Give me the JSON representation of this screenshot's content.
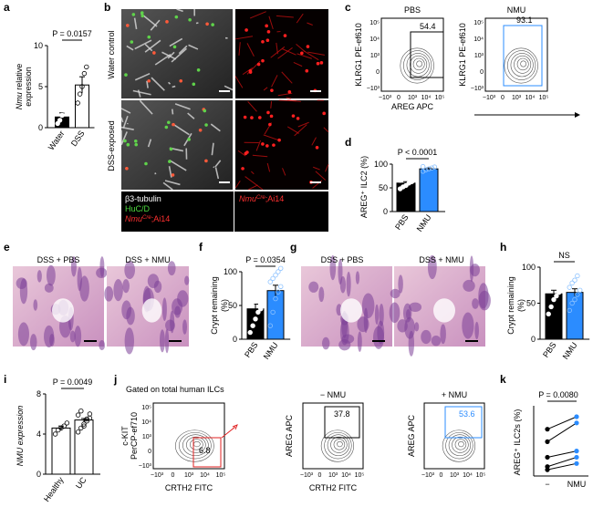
{
  "panels": {
    "a": {
      "label": "a",
      "ylabel_gene": "Nmu",
      "ylabel_rest": " relative",
      "ylabel2": "expression",
      "p_text": "P = 0.0157",
      "categories": [
        "Water",
        "DSS"
      ],
      "values": [
        1.3,
        5.2
      ],
      "errors": [
        0.5,
        1.0
      ],
      "points": [
        [
          0.5,
          0.9,
          1.5,
          2.1
        ],
        [
          3.0,
          4.1,
          5.0,
          6.6,
          7.4
        ]
      ],
      "colors": [
        "#000000",
        "#ffffff"
      ],
      "ylim": [
        0,
        10
      ],
      "yticks": [
        0,
        5,
        10
      ]
    },
    "b": {
      "label": "b",
      "rows": [
        "Water control",
        "DSS-exposed"
      ],
      "legend": [
        "β3-tubulin",
        "HuC/D"
      ],
      "reporter": {
        "gene": "Nmu",
        "sup": "Cre",
        "rest": ";Ai14"
      }
    },
    "c": {
      "label": "c",
      "plots": [
        {
          "title": "PBS",
          "gate": 54.4
        },
        {
          "title": "NMU",
          "gate": 93.1
        }
      ],
      "ylabel": "KLRG1 PE-ef610",
      "xlabel": "AREG APC",
      "ticks": [
        "−10³",
        "0",
        "10³",
        "10⁴",
        "10⁵"
      ]
    },
    "d": {
      "label": "d",
      "ylabel": "AREG⁺ ILC2 (%)",
      "p_text": "P < 0.0001",
      "categories": [
        "PBS",
        "NMU"
      ],
      "values": [
        60,
        90
      ],
      "errors": [
        3,
        2
      ],
      "points": [
        [
          48,
          52,
          55,
          60,
          63,
          66,
          70
        ],
        [
          85,
          88,
          90,
          92,
          94,
          95
        ]
      ],
      "colors": [
        "#000000",
        "#2b8cff"
      ],
      "ylim": [
        0,
        100
      ],
      "yticks": [
        0,
        50,
        100
      ]
    },
    "e": {
      "label": "e",
      "titles": [
        "DSS + PBS",
        "DSS + NMU"
      ]
    },
    "f": {
      "label": "f",
      "ylabel": "Crypt remaining",
      "ylabel2": "(%)",
      "p_text": "P = 0.0354",
      "categories": [
        "PBS",
        "NMU"
      ],
      "values": [
        45,
        72
      ],
      "errors": [
        7,
        8
      ],
      "points": [
        [
          10,
          20,
          30,
          40,
          45,
          50,
          55,
          60,
          65,
          72,
          80
        ],
        [
          20,
          40,
          60,
          70,
          78,
          85,
          90,
          95,
          100,
          105
        ]
      ],
      "colors": [
        "#000000",
        "#2b8cff"
      ],
      "ylim": [
        0,
        100
      ],
      "yticks": [
        0,
        50,
        100
      ]
    },
    "g": {
      "label": "g",
      "titles": [
        "DSS + PBS",
        "DSS + NMU"
      ]
    },
    "h": {
      "label": "h",
      "ylabel": "Crypt remaining",
      "ylabel2": "(%)",
      "p_text": "NS",
      "categories": [
        "PBS",
        "NMU"
      ],
      "values": [
        63,
        65
      ],
      "errors": [
        5,
        5
      ],
      "points": [
        [
          35,
          45,
          55,
          60,
          65,
          70,
          75,
          80,
          85
        ],
        [
          40,
          50,
          55,
          62,
          68,
          72,
          78,
          82,
          88
        ]
      ],
      "colors": [
        "#000000",
        "#2b8cff"
      ],
      "ylim": [
        0,
        100
      ],
      "yticks": [
        0,
        50,
        100
      ]
    },
    "i": {
      "label": "i",
      "ylabel": "NMU expression",
      "p_text": "P = 0.0049",
      "categories": [
        "Healthy",
        "UC"
      ],
      "values": [
        4.6,
        5.4
      ],
      "errors": [
        0.2,
        0.15
      ],
      "points": [
        [
          4.0,
          4.4,
          4.6,
          4.8,
          5.1
        ],
        [
          4.2,
          4.6,
          5.0,
          5.3,
          5.6,
          5.9,
          6.3,
          4.8,
          5.5,
          6.0
        ]
      ],
      "colors": [
        "#ffffff",
        "#ffffff"
      ],
      "ylim": [
        0,
        8
      ],
      "yticks": [
        0,
        4,
        8
      ]
    },
    "j": {
      "label": "j",
      "gating": "Gated on total human ILCs",
      "ylabel": "c-KIT",
      "ylabel2": "PerCP-ef710",
      "xlabel": "CRTH2 FITC",
      "gate": 6.8,
      "plots": [
        {
          "title": "− NMU",
          "gate": 37.8
        },
        {
          "title": "+ NMU",
          "gate": 53.6
        }
      ],
      "ylabel_b": "AREG APC",
      "ticks": [
        "−10³",
        "0",
        "10³",
        "10⁴",
        "10⁵"
      ]
    },
    "k": {
      "label": "k",
      "ylabel": "AREG⁺ ILC2s (%)",
      "p_text": "P = 0.0080",
      "categories": [
        "−",
        "NMU"
      ],
      "pairs": [
        [
          30,
          38
        ],
        [
          22,
          34
        ],
        [
          12,
          16
        ],
        [
          6,
          12
        ],
        [
          4,
          8
        ]
      ],
      "ylim": [
        0,
        45
      ]
    }
  }
}
